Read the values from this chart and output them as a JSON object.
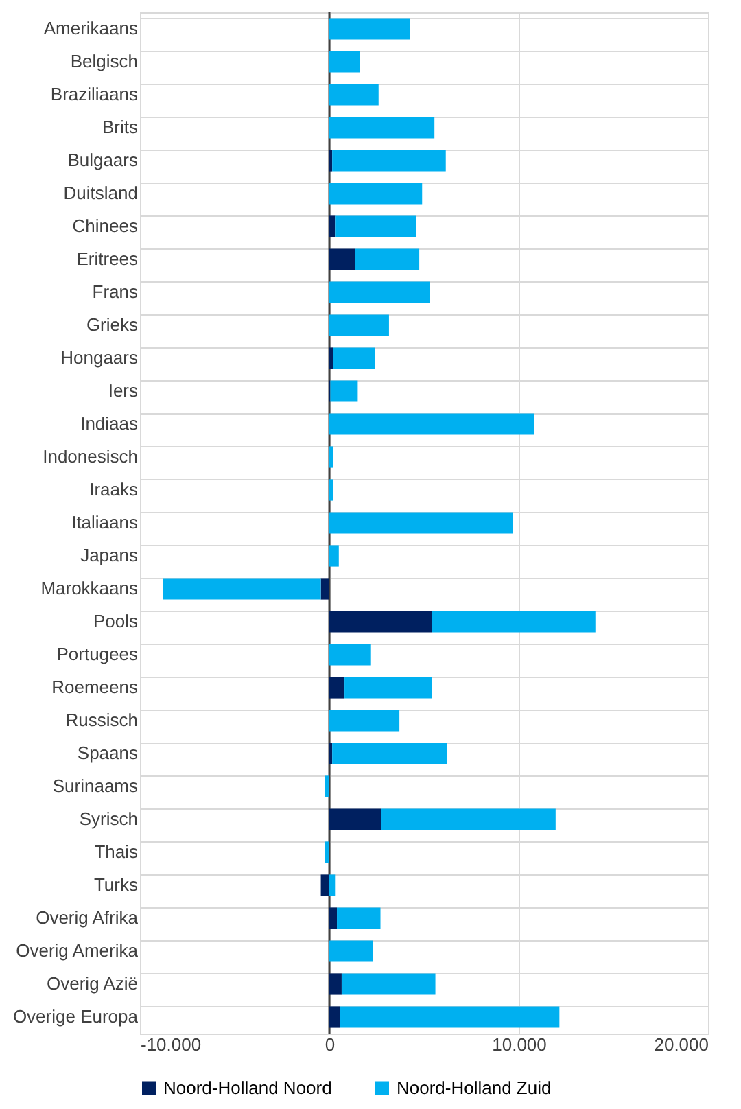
{
  "chart_data": {
    "type": "bar",
    "orientation": "horizontal",
    "stacked": true,
    "categories": [
      "Amerikaans",
      "Belgisch",
      "Braziliaans",
      "Brits",
      "Bulgaars",
      "Duitsland",
      "Chinees",
      "Eritrees",
      "Frans",
      "Grieks",
      "Hongaars",
      "Iers",
      "Indiaas",
      "Indonesisch",
      "Iraaks",
      "Italiaans",
      "Japans",
      "Marokkaans",
      "Pools",
      "Portugees",
      "Roemeens",
      "Russisch",
      "Spaans",
      "Surinaams",
      "Syrisch",
      "Thais",
      "Turks",
      "Overig Afrika",
      "Overig Amerika",
      "Overig Azië",
      "Overige Europa"
    ],
    "series": [
      {
        "name": "Noord-Holland Noord",
        "color": "#002060",
        "values": [
          0,
          0,
          0,
          0,
          150,
          0,
          300,
          1350,
          0,
          0,
          200,
          50,
          0,
          0,
          0,
          0,
          0,
          -450,
          5400,
          0,
          800,
          0,
          150,
          0,
          2750,
          0,
          -450,
          400,
          0,
          650,
          550
        ]
      },
      {
        "name": "Noord-Holland Zuid",
        "color": "#00b0f0",
        "values": [
          4250,
          1600,
          2600,
          5550,
          6000,
          4900,
          4300,
          3400,
          5300,
          3150,
          2200,
          1450,
          10800,
          200,
          200,
          9700,
          500,
          -8350,
          8650,
          2200,
          4600,
          3700,
          6050,
          -250,
          9200,
          -250,
          300,
          2300,
          2300,
          4950,
          11600
        ]
      }
    ],
    "xlim": [
      -10000,
      20000
    ],
    "xticks": [
      {
        "value": -10000,
        "label": "-10.000"
      },
      0,
      {
        "value": 10000,
        "label": "10.000"
      },
      {
        "value": 20000,
        "label": "20.000"
      }
    ],
    "grid": true,
    "legend": "bottom"
  }
}
